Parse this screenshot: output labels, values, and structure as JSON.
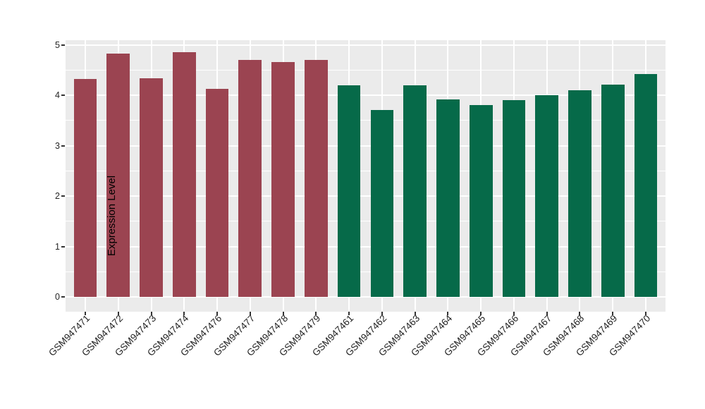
{
  "chart_data": {
    "type": "bar",
    "title": "",
    "xlabel": "",
    "ylabel": "Expression Level",
    "ylim": [
      0,
      5
    ],
    "yticks": [
      0,
      1,
      2,
      3,
      4,
      5
    ],
    "grid": "on",
    "legend_position": "none",
    "categories": [
      "GSM947471",
      "GSM947472",
      "GSM947473",
      "GSM947474",
      "GSM947476",
      "GSM947477",
      "GSM947478",
      "GSM947479",
      "GSM947461",
      "GSM947462",
      "GSM947463",
      "GSM947464",
      "GSM947465",
      "GSM947466",
      "GSM947467",
      "GSM947468",
      "GSM947469",
      "GSM947470"
    ],
    "values": [
      4.32,
      4.83,
      4.33,
      4.85,
      4.12,
      4.7,
      4.66,
      4.7,
      4.2,
      3.7,
      4.2,
      3.92,
      3.8,
      3.9,
      4.0,
      4.1,
      4.21,
      4.42
    ],
    "bar_groups": [
      "group1",
      "group1",
      "group1",
      "group1",
      "group1",
      "group1",
      "group1",
      "group1",
      "group2",
      "group2",
      "group2",
      "group2",
      "group2",
      "group2",
      "group2",
      "group2",
      "group2",
      "group2"
    ],
    "group_colors": {
      "group1": "#9B4451",
      "group2": "#066A49"
    },
    "style_colors": {
      "panel_background": "#EBEBEB",
      "grid_major": "#FFFFFF",
      "grid_minor": "#FFFFFF",
      "tick_mark": "#333333",
      "axis_text": "#262626",
      "axis_title": "#000000"
    }
  }
}
